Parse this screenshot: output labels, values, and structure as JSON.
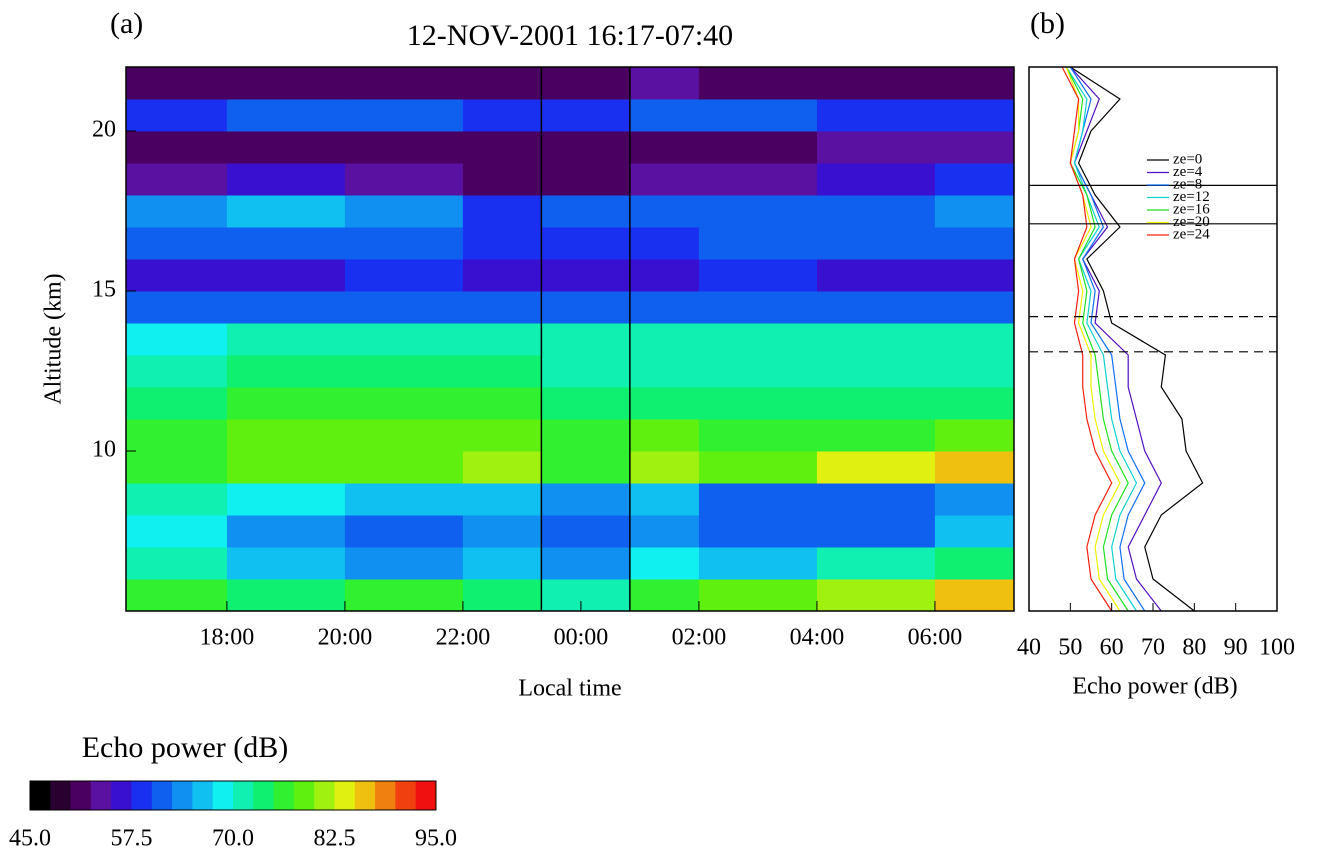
{
  "chart_data": [
    {
      "type": "heatmap",
      "panel": "(a)",
      "title": "12-NOV-2001 16:17-07:40",
      "x_label": "Local time",
      "y_label": "Altitude (km)",
      "xlim": [
        16.29,
        31.34
      ],
      "xticks": [
        {
          "value": 18,
          "label": "18:00"
        },
        {
          "value": 20,
          "label": "20:00"
        },
        {
          "value": 22,
          "label": "22:00"
        },
        {
          "value": 24,
          "label": "00:00"
        },
        {
          "value": 26,
          "label": "02:00"
        },
        {
          "value": 28,
          "label": "04:00"
        },
        {
          "value": 30,
          "label": "06:00"
        }
      ],
      "ylim": [
        5,
        22
      ],
      "yticks": [
        10,
        15,
        20
      ],
      "x_bins": [
        16.29,
        18,
        20,
        22,
        23.33,
        24.83,
        26,
        28,
        30,
        31.34
      ],
      "y_bins": [
        5,
        6,
        7,
        8,
        9,
        10,
        11,
        12,
        13,
        14,
        15,
        16,
        17,
        18,
        19,
        20,
        21,
        22
      ],
      "values": [
        [
          76,
          74,
          75,
          74,
          72,
          76,
          78,
          82,
          86
        ],
        [
          70,
          66,
          64,
          66,
          64,
          68,
          66,
          70,
          74
        ],
        [
          68,
          64,
          62,
          64,
          60,
          64,
          60,
          62,
          66
        ],
        [
          70,
          68,
          66,
          66,
          64,
          66,
          62,
          60,
          64
        ],
        [
          76,
          78,
          78,
          80,
          76,
          80,
          78,
          84,
          86
        ],
        [
          76,
          78,
          78,
          78,
          76,
          78,
          76,
          76,
          78
        ],
        [
          74,
          76,
          76,
          76,
          74,
          74,
          74,
          74,
          74
        ],
        [
          72,
          74,
          74,
          74,
          72,
          72,
          72,
          72,
          72
        ],
        [
          68,
          70,
          70,
          70,
          70,
          70,
          70,
          70,
          70
        ],
        [
          62,
          60,
          62,
          62,
          62,
          62,
          62,
          60,
          60
        ],
        [
          56,
          56,
          58,
          56,
          56,
          56,
          58,
          56,
          56
        ],
        [
          62,
          62,
          60,
          58,
          58,
          58,
          60,
          60,
          60
        ],
        [
          64,
          66,
          64,
          58,
          60,
          60,
          62,
          62,
          64
        ],
        [
          54,
          56,
          54,
          52,
          52,
          54,
          54,
          56,
          58
        ],
        [
          52,
          52,
          52,
          50,
          52,
          52,
          52,
          54,
          54
        ],
        [
          58,
          60,
          60,
          58,
          58,
          60,
          60,
          58,
          58
        ],
        [
          52,
          52,
          52,
          52,
          52,
          54,
          52,
          52,
          52
        ]
      ],
      "vlines": [
        23.33,
        24.83
      ],
      "colorbar": {
        "title": "Echo power (dB)",
        "clim": [
          45,
          95
        ],
        "ticks": [
          {
            "value": 45,
            "label": "45.0"
          },
          57.5,
          {
            "value": 70,
            "label": "70.0"
          },
          82.5,
          {
            "value": 95,
            "label": "95.0"
          }
        ],
        "colors": [
          "#000000",
          "#2a0030",
          "#4a0060",
          "#5a10a0",
          "#3a10d0",
          "#1a30f0",
          "#1060f0",
          "#1090f0",
          "#10c0f0",
          "#10f0f0",
          "#10f0b0",
          "#10f070",
          "#30f030",
          "#60f010",
          "#a0f010",
          "#e0f010",
          "#f0c010",
          "#f08010",
          "#f04010",
          "#f01010"
        ]
      }
    },
    {
      "type": "line",
      "panel": "(b)",
      "x_label": "Echo power (dB)",
      "xlim": [
        40,
        100
      ],
      "xticks": [
        40,
        50,
        60,
        70,
        80,
        90,
        100
      ],
      "ylim": [
        5,
        22
      ],
      "y": [
        5,
        6,
        7,
        8,
        9,
        10,
        11,
        12,
        13,
        14,
        15,
        16,
        17,
        18,
        19,
        20,
        21,
        22
      ],
      "legend": "center",
      "hlines_solid": [
        18.3,
        17.1
      ],
      "hlines_dashed": [
        14.2,
        13.1
      ],
      "series": [
        {
          "name": "ze=0",
          "color": "#000000",
          "values": [
            80,
            70,
            68,
            72,
            82,
            78,
            77,
            72,
            73,
            60,
            58,
            54,
            62,
            56,
            52,
            55,
            62,
            50
          ]
        },
        {
          "name": "ze=4",
          "color": "#5010c0",
          "values": [
            72,
            66,
            64,
            68,
            72,
            68,
            66,
            64,
            64,
            56,
            57,
            53,
            59,
            55,
            51,
            54,
            57,
            50
          ]
        },
        {
          "name": "ze=8",
          "color": "#1070f0",
          "values": [
            68,
            63,
            62,
            64,
            68,
            64,
            62,
            61,
            60,
            55,
            56,
            53,
            58,
            55,
            51,
            53,
            55,
            50
          ]
        },
        {
          "name": "ze=12",
          "color": "#10d0d0",
          "values": [
            66,
            61,
            60,
            62,
            66,
            62,
            60,
            59,
            58,
            54,
            55,
            52,
            57,
            54,
            51,
            53,
            54,
            49
          ]
        },
        {
          "name": "ze=16",
          "color": "#20e020",
          "values": [
            64,
            59,
            58,
            60,
            64,
            60,
            58,
            57,
            56,
            53,
            54,
            52,
            56,
            54,
            50,
            52,
            53,
            49
          ]
        },
        {
          "name": "ze=20",
          "color": "#f0f000",
          "values": [
            62,
            57,
            56,
            58,
            62,
            58,
            56,
            55,
            55,
            52,
            53,
            51,
            55,
            53,
            50,
            52,
            52,
            49
          ]
        },
        {
          "name": "ze=24",
          "color": "#f02010",
          "values": [
            60,
            55,
            54,
            56,
            60,
            56,
            54,
            53,
            53,
            51,
            52,
            51,
            54,
            53,
            50,
            51,
            52,
            48
          ]
        }
      ]
    }
  ]
}
